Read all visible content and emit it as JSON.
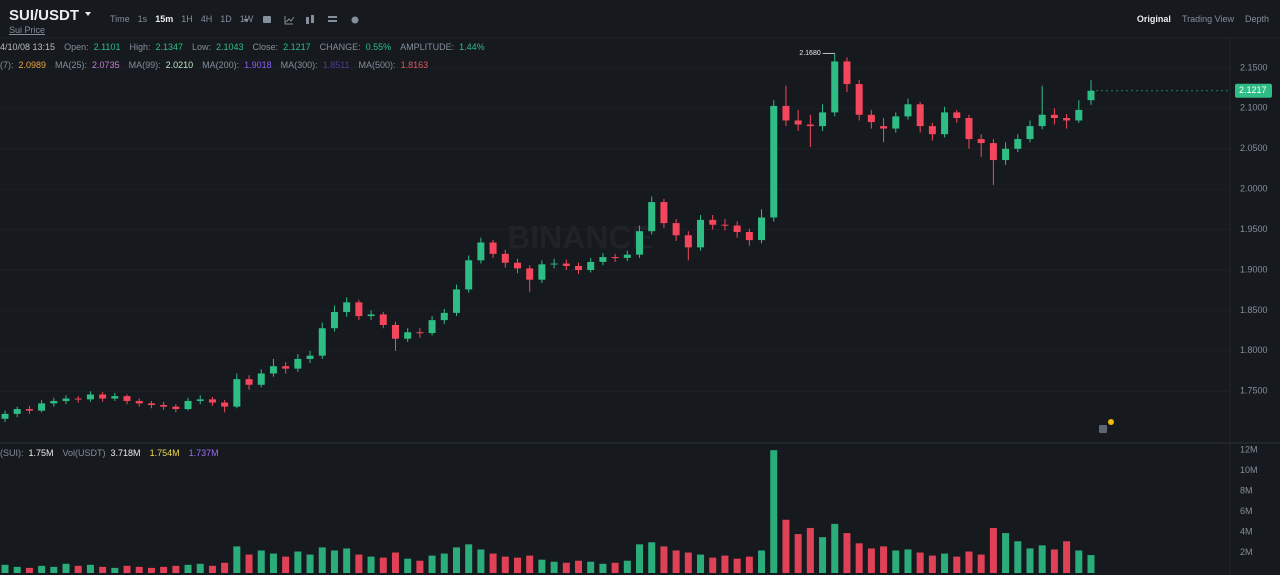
{
  "header": {
    "symbol": "SUI/USDT",
    "subtitle": "Sui Price",
    "intervals": [
      "Time",
      "1s",
      "15m",
      "1H",
      "4H",
      "1D",
      "1W"
    ],
    "views": [
      "Original",
      "Trading View",
      "Depth"
    ],
    "watermark": "BINANCE",
    "date": "4/10/08 13:15",
    "info": [
      {
        "label": "Open:",
        "value": "2.1101"
      },
      {
        "label": "High:",
        "value": "2.1347"
      },
      {
        "label": "Low:",
        "value": "2.1043"
      },
      {
        "label": "Close:",
        "value": "2.1217"
      },
      {
        "label": "CHANGE:",
        "value": "0.55%"
      },
      {
        "label": "AMPLITUDE:",
        "value": "1.44%"
      }
    ],
    "ma_row": [
      {
        "label": "(7):",
        "value": "2.0989",
        "color": "#e8a23b"
      },
      {
        "label": "MA(25):",
        "value": "2.0735",
        "color": "#c77dd6"
      },
      {
        "label": "MA(99):",
        "value": "2.0210",
        "color": "#b8e6c8"
      },
      {
        "label": "MA(200):",
        "value": "1.9018",
        "color": "#8b5cf6"
      },
      {
        "label": "MA(300):",
        "value": "1.8511",
        "color": "#4b3a9a"
      },
      {
        "label": "MA(500):",
        "value": "1.8163",
        "color": "#e0555f"
      }
    ],
    "vol_row": [
      {
        "label": "(SUI):",
        "value": "1.75M",
        "color": "#eaecef"
      },
      {
        "label": "Vol(USDT)",
        "value": "3.718M",
        "color": "#eaecef"
      },
      {
        "label": "",
        "value": "1.754M",
        "color": "#f0d84a"
      },
      {
        "label": "",
        "value": "1.737M",
        "color": "#9b6cf0"
      }
    ]
  },
  "chart_data": {
    "type": "candlestick",
    "up_color": "#2ebd85",
    "down_color": "#f6465d",
    "grid": true,
    "ylim": [
      1.686,
      2.187
    ],
    "yticks": [
      {
        "value": 1.75,
        "label": "1.7500"
      },
      {
        "value": 1.8,
        "label": "1.8000"
      },
      {
        "value": 1.85,
        "label": "1.8500"
      },
      {
        "value": 1.9,
        "label": "1.9000"
      },
      {
        "value": 1.95,
        "label": "1.9500"
      },
      {
        "value": 2.0,
        "label": "2.0000"
      },
      {
        "value": 2.05,
        "label": "2.0500"
      },
      {
        "value": 2.1,
        "label": "2.1000"
      },
      {
        "value": 2.15,
        "label": "2.1500"
      }
    ],
    "high_marker": "2.1680",
    "ohlc": [
      [
        1.716,
        1.726,
        1.712,
        1.722
      ],
      [
        1.722,
        1.731,
        1.718,
        1.728
      ],
      [
        1.728,
        1.732,
        1.722,
        1.726
      ],
      [
        1.726,
        1.739,
        1.724,
        1.735
      ],
      [
        1.735,
        1.742,
        1.731,
        1.738
      ],
      [
        1.738,
        1.745,
        1.734,
        1.741
      ],
      [
        1.741,
        1.744,
        1.736,
        1.74
      ],
      [
        1.74,
        1.75,
        1.737,
        1.746
      ],
      [
        1.746,
        1.749,
        1.737,
        1.741
      ],
      [
        1.741,
        1.748,
        1.738,
        1.744
      ],
      [
        1.744,
        1.746,
        1.734,
        1.738
      ],
      [
        1.738,
        1.741,
        1.731,
        1.735
      ],
      [
        1.735,
        1.738,
        1.729,
        1.733
      ],
      [
        1.733,
        1.737,
        1.727,
        1.731
      ],
      [
        1.731,
        1.734,
        1.724,
        1.728
      ],
      [
        1.728,
        1.742,
        1.726,
        1.738
      ],
      [
        1.738,
        1.745,
        1.734,
        1.74
      ],
      [
        1.74,
        1.743,
        1.732,
        1.736
      ],
      [
        1.736,
        1.739,
        1.724,
        1.731
      ],
      [
        1.731,
        1.772,
        1.729,
        1.765
      ],
      [
        1.765,
        1.77,
        1.752,
        1.758
      ],
      [
        1.758,
        1.777,
        1.755,
        1.772
      ],
      [
        1.772,
        1.79,
        1.768,
        1.781
      ],
      [
        1.781,
        1.786,
        1.772,
        1.778
      ],
      [
        1.778,
        1.796,
        1.774,
        1.79
      ],
      [
        1.79,
        1.8,
        1.785,
        1.794
      ],
      [
        1.794,
        1.835,
        1.79,
        1.828
      ],
      [
        1.828,
        1.856,
        1.824,
        1.848
      ],
      [
        1.848,
        1.866,
        1.842,
        1.86
      ],
      [
        1.86,
        1.863,
        1.838,
        1.843
      ],
      [
        1.843,
        1.85,
        1.838,
        1.845
      ],
      [
        1.845,
        1.848,
        1.828,
        1.832
      ],
      [
        1.832,
        1.836,
        1.8,
        1.815
      ],
      [
        1.815,
        1.828,
        1.811,
        1.823
      ],
      [
        1.823,
        1.828,
        1.816,
        1.822
      ],
      [
        1.822,
        1.843,
        1.819,
        1.838
      ],
      [
        1.838,
        1.852,
        1.833,
        1.847
      ],
      [
        1.847,
        1.882,
        1.843,
        1.876
      ],
      [
        1.876,
        1.918,
        1.872,
        1.912
      ],
      [
        1.912,
        1.94,
        1.908,
        1.934
      ],
      [
        1.934,
        1.937,
        1.915,
        1.92
      ],
      [
        1.92,
        1.925,
        1.903,
        1.909
      ],
      [
        1.909,
        1.914,
        1.896,
        1.902
      ],
      [
        1.902,
        1.906,
        1.873,
        1.888
      ],
      [
        1.888,
        1.912,
        1.884,
        1.907
      ],
      [
        1.907,
        1.914,
        1.902,
        1.908
      ],
      [
        1.908,
        1.913,
        1.9,
        1.905
      ],
      [
        1.905,
        1.909,
        1.895,
        1.9
      ],
      [
        1.9,
        1.915,
        1.897,
        1.91
      ],
      [
        1.91,
        1.921,
        1.906,
        1.916
      ],
      [
        1.916,
        1.92,
        1.91,
        1.915
      ],
      [
        1.915,
        1.924,
        1.911,
        1.919
      ],
      [
        1.919,
        1.955,
        1.915,
        1.948
      ],
      [
        1.948,
        1.991,
        1.944,
        1.984
      ],
      [
        1.984,
        1.988,
        1.952,
        1.958
      ],
      [
        1.958,
        1.963,
        1.936,
        1.943
      ],
      [
        1.943,
        1.948,
        1.912,
        1.928
      ],
      [
        1.928,
        1.968,
        1.924,
        1.962
      ],
      [
        1.962,
        1.968,
        1.95,
        1.956
      ],
      [
        1.956,
        1.963,
        1.949,
        1.955
      ],
      [
        1.955,
        1.96,
        1.94,
        1.947
      ],
      [
        1.947,
        1.951,
        1.93,
        1.937
      ],
      [
        1.937,
        1.975,
        1.933,
        1.965
      ],
      [
        1.965,
        2.11,
        1.96,
        2.103
      ],
      [
        2.103,
        2.128,
        2.078,
        2.085
      ],
      [
        2.085,
        2.098,
        2.072,
        2.08
      ],
      [
        2.08,
        2.092,
        2.052,
        2.078
      ],
      [
        2.078,
        2.105,
        2.072,
        2.095
      ],
      [
        2.095,
        2.168,
        2.09,
        2.158
      ],
      [
        2.158,
        2.163,
        2.12,
        2.13
      ],
      [
        2.13,
        2.135,
        2.085,
        2.092
      ],
      [
        2.092,
        2.098,
        2.075,
        2.083
      ],
      [
        2.078,
        2.088,
        2.058,
        2.075
      ],
      [
        2.075,
        2.095,
        2.07,
        2.09
      ],
      [
        2.09,
        2.112,
        2.086,
        2.105
      ],
      [
        2.105,
        2.108,
        2.07,
        2.078
      ],
      [
        2.078,
        2.082,
        2.06,
        2.068
      ],
      [
        2.068,
        2.102,
        2.064,
        2.095
      ],
      [
        2.095,
        2.098,
        2.082,
        2.088
      ],
      [
        2.088,
        2.092,
        2.05,
        2.062
      ],
      [
        2.062,
        2.068,
        2.04,
        2.057
      ],
      [
        2.057,
        2.062,
        2.005,
        2.036
      ],
      [
        2.036,
        2.058,
        2.03,
        2.05
      ],
      [
        2.05,
        2.068,
        2.046,
        2.062
      ],
      [
        2.062,
        2.085,
        2.058,
        2.078
      ],
      [
        2.078,
        2.128,
        2.074,
        2.092
      ],
      [
        2.092,
        2.1,
        2.08,
        2.088
      ],
      [
        2.088,
        2.093,
        2.075,
        2.085
      ],
      [
        2.085,
        2.11,
        2.082,
        2.098
      ],
      [
        2.1101,
        2.1347,
        2.1043,
        2.1217
      ]
    ],
    "volume": {
      "ylim": [
        0,
        12700000
      ],
      "yticks": [
        {
          "value": 2000000,
          "label": "2M"
        },
        {
          "value": 4000000,
          "label": "4M"
        },
        {
          "value": 6000000,
          "label": "6M"
        },
        {
          "value": 8000000,
          "label": "8M"
        },
        {
          "value": 10000000,
          "label": "10M"
        },
        {
          "value": 12000000,
          "label": "12M"
        }
      ],
      "values": [
        800000,
        600000,
        500000,
        700000,
        600000,
        900000,
        700000,
        800000,
        600000,
        500000,
        700000,
        600000,
        500000,
        600000,
        700000,
        800000,
        900000,
        700000,
        1000000,
        2600000,
        1800000,
        2200000,
        1900000,
        1600000,
        2100000,
        1800000,
        2500000,
        2200000,
        2400000,
        1800000,
        1600000,
        1500000,
        2000000,
        1400000,
        1200000,
        1700000,
        1900000,
        2500000,
        2800000,
        2300000,
        1900000,
        1600000,
        1500000,
        1700000,
        1300000,
        1100000,
        1000000,
        1200000,
        1100000,
        900000,
        1000000,
        1200000,
        2800000,
        3000000,
        2600000,
        2200000,
        2000000,
        1800000,
        1500000,
        1700000,
        1400000,
        1600000,
        2200000,
        12000000,
        5200000,
        3800000,
        4400000,
        3500000,
        4800000,
        3900000,
        2900000,
        2400000,
        2600000,
        2200000,
        2300000,
        2000000,
        1700000,
        1900000,
        1600000,
        2100000,
        1800000,
        4400000,
        3900000,
        3100000,
        2400000,
        2700000,
        2300000,
        3100000,
        2200000,
        1750000
      ]
    }
  }
}
